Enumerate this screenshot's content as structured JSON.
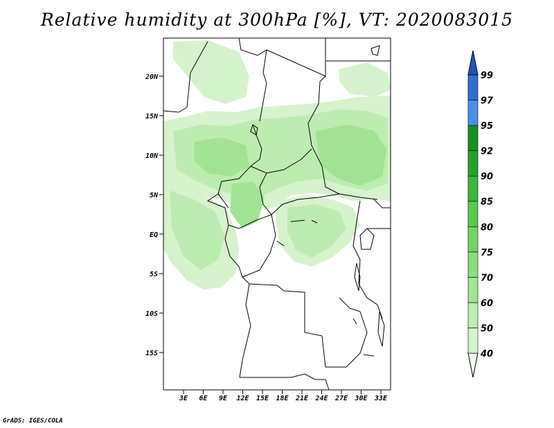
{
  "title": "Relative humidity at 300hPa [%], VT: 2020083015",
  "credit": "GrADS: IGES/COLA",
  "map": {
    "lat_labels": [
      "20N",
      "15N",
      "10N",
      "5N",
      "EQ",
      "5S",
      "10S",
      "15S"
    ],
    "lon_labels": [
      "3E",
      "6E",
      "9E",
      "12E",
      "15E",
      "18E",
      "21E",
      "24E",
      "27E",
      "30E",
      "33E"
    ]
  },
  "colorbar": {
    "levels": [
      "40",
      "50",
      "60",
      "70",
      "75",
      "80",
      "85",
      "90",
      "92",
      "95",
      "97",
      "99"
    ],
    "colors": [
      "#eefaeb",
      "#d4f4cc",
      "#bcedb2",
      "#a3e596",
      "#8cdd7f",
      "#74d466",
      "#59c94c",
      "#3eb63a",
      "#27a229",
      "#188f1c",
      "#4a90e8",
      "#2f6fd4",
      "#1f56b8"
    ]
  },
  "fill_colors": {
    "light": "#d6f3cd",
    "medium": "#bdecb0",
    "strong": "#a3e396"
  }
}
